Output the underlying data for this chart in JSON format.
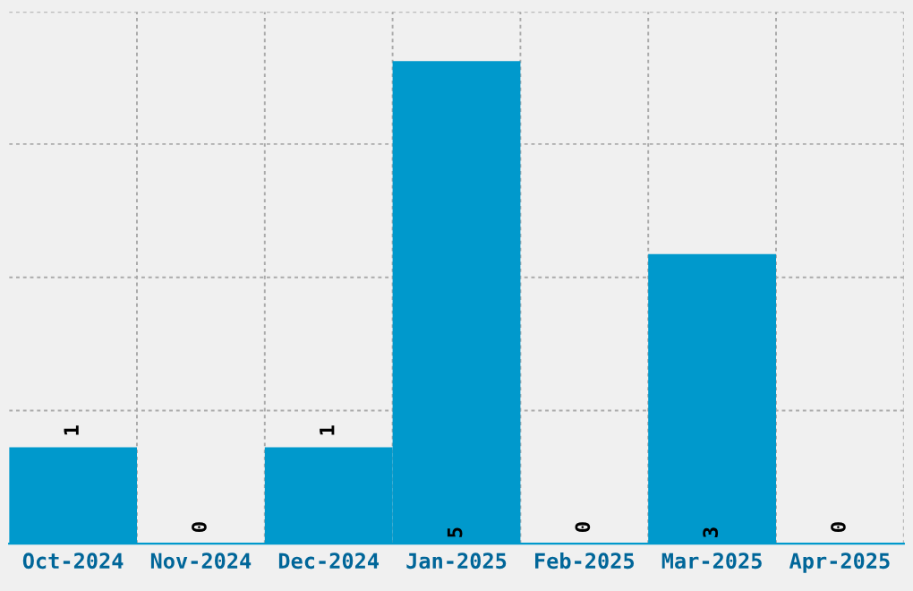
{
  "chart_data": {
    "type": "bar",
    "categories": [
      "Oct-2024",
      "Nov-2024",
      "Dec-2024",
      "Jan-2025",
      "Feb-2025",
      "Mar-2025",
      "Apr-2025"
    ],
    "values": [
      1,
      0,
      1,
      5,
      0,
      3,
      0
    ],
    "color": "#0099cc",
    "ylim": [
      0,
      5.51
    ],
    "yticks": [
      {
        "value": 1.38,
        "label": null
      },
      {
        "value": 2.76,
        "label": null
      },
      {
        "value": 4.14,
        "label": null
      },
      {
        "value": 5.51,
        "label": null
      }
    ],
    "grid": true,
    "data_labels": true,
    "tick_labels": "x"
  }
}
